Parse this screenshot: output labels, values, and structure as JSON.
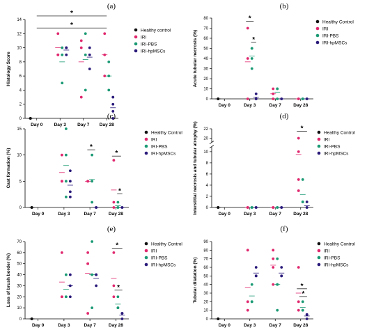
{
  "colors": {
    "Healthy control": "#111111",
    "IRI": "#e0286e",
    "IRI-PBS": "#1b9a74",
    "IRI-hpMSCs": "#2a1a7a"
  },
  "chart_data": [
    {
      "panel": "(a)",
      "type": "scatter",
      "ylabel": "Histology Score",
      "categories": [
        "Day 0",
        "Day 3",
        "Day 7",
        "Day 28"
      ],
      "ylim": [
        0,
        14
      ],
      "yticks": [
        0,
        2,
        4,
        6,
        8,
        10,
        12,
        14
      ],
      "legend": [
        "Healthy control",
        "IRI",
        "IRI-PBS",
        "IRI-hpMSCs"
      ],
      "legend_position": "right",
      "series": [
        {
          "name": "Healthy control",
          "points": [
            [
              0,
              0
            ],
            [
              0,
              0
            ],
            [
              0,
              0
            ]
          ]
        },
        {
          "name": "IRI",
          "points": [
            [
              1,
              9
            ],
            [
              1,
              9
            ],
            [
              1,
              12
            ],
            [
              2,
              10
            ],
            [
              2,
              11
            ],
            [
              2,
              3
            ],
            [
              3,
              9
            ],
            [
              3,
              12
            ],
            [
              3,
              6
            ]
          ]
        },
        {
          "name": "IRI-PBS",
          "points": [
            [
              1,
              5
            ],
            [
              1,
              9
            ],
            [
              1,
              10
            ],
            [
              2,
              4
            ],
            [
              2,
              9
            ],
            [
              2,
              12
            ],
            [
              3,
              4
            ],
            [
              3,
              6
            ],
            [
              3,
              8
            ]
          ]
        },
        {
          "name": "IRI-hpMSCs",
          "points": [
            [
              1,
              9
            ],
            [
              1,
              10
            ],
            [
              1,
              10
            ],
            [
              2,
              7
            ],
            [
              2,
              9
            ],
            [
              2,
              10
            ],
            [
              3,
              0
            ],
            [
              3,
              1
            ],
            [
              3,
              2
            ],
            [
              3,
              3
            ]
          ]
        }
      ],
      "significance": [
        {
          "from": 0,
          "to": 3,
          "level": 14.5,
          "label": "*"
        },
        {
          "from": 0,
          "to": 3,
          "level": 12.8,
          "label": "*"
        }
      ]
    },
    {
      "panel": "(b)",
      "type": "scatter",
      "ylabel": "Acute tubular necrosis (%)",
      "categories": [
        "Day 0",
        "Day 3",
        "Day 7",
        "Day 28"
      ],
      "ylim": [
        0,
        80
      ],
      "yticks": [
        0,
        10,
        20,
        30,
        40,
        50,
        60,
        70,
        80
      ],
      "legend": [
        "Healthy Control",
        "IRI",
        "IRI-PBS",
        "IRI-hpMSCs"
      ],
      "legend_position": "top-right",
      "series": [
        {
          "name": "Healthy Control",
          "points": [
            [
              0,
              0
            ],
            [
              0,
              0
            ],
            [
              0,
              0
            ]
          ]
        },
        {
          "name": "IRI",
          "points": [
            [
              1,
              40
            ],
            [
              1,
              70
            ],
            [
              1,
              0
            ],
            [
              2,
              10
            ],
            [
              2,
              5
            ],
            [
              2,
              0
            ],
            [
              3,
              0
            ],
            [
              3,
              0
            ]
          ]
        },
        {
          "name": "IRI-PBS",
          "points": [
            [
              1,
              30
            ],
            [
              1,
              40
            ],
            [
              1,
              50
            ],
            [
              1,
              50
            ],
            [
              2,
              10
            ],
            [
              2,
              10
            ],
            [
              2,
              0
            ],
            [
              3,
              0
            ],
            [
              3,
              0
            ]
          ]
        },
        {
          "name": "IRI-hpMSCs",
          "points": [
            [
              1,
              0
            ],
            [
              1,
              0
            ],
            [
              1,
              5
            ],
            [
              2,
              0
            ],
            [
              2,
              0
            ],
            [
              3,
              0
            ],
            [
              3,
              0
            ]
          ]
        }
      ],
      "significance": [
        {
          "from": 0.85,
          "to": 1.15,
          "level": 77,
          "label": "*"
        },
        {
          "from": 1.05,
          "to": 1.25,
          "level": 56,
          "label": "*"
        }
      ]
    },
    {
      "panel": "(c)",
      "type": "scatter",
      "ylabel": "Cast formation (%)",
      "categories": [
        "Day 0",
        "Day 3",
        "Day 7",
        "Day 28"
      ],
      "ylim": [
        0,
        15
      ],
      "yticks": [
        0,
        5,
        10,
        15
      ],
      "legend": [
        "Healthy Control",
        "IRI",
        "IRI-PBS",
        "IRI-hpMSCs"
      ],
      "legend_position": "top-right",
      "series": [
        {
          "name": "Healthy Control",
          "points": [
            [
              0,
              0
            ],
            [
              0,
              0
            ],
            [
              0,
              0
            ]
          ]
        },
        {
          "name": "IRI",
          "points": [
            [
              1,
              10
            ],
            [
              1,
              5
            ],
            [
              1,
              5
            ],
            [
              2,
              5
            ],
            [
              2,
              5
            ],
            [
              3,
              9
            ],
            [
              3,
              1
            ],
            [
              3,
              0
            ]
          ]
        },
        {
          "name": "IRI-PBS",
          "points": [
            [
              1,
              15
            ],
            [
              1,
              10
            ],
            [
              1,
              5
            ],
            [
              1,
              2
            ],
            [
              2,
              10
            ],
            [
              2,
              5
            ],
            [
              2,
              1
            ],
            [
              3,
              1
            ],
            [
              3,
              0
            ],
            [
              3,
              0
            ]
          ]
        },
        {
          "name": "IRI-hpMSCs",
          "points": [
            [
              1,
              7
            ],
            [
              1,
              5
            ],
            [
              1,
              3
            ],
            [
              1,
              2
            ],
            [
              2,
              0
            ],
            [
              2,
              0
            ],
            [
              3,
              0
            ],
            [
              3,
              0
            ]
          ]
        }
      ],
      "significance": [
        {
          "from": 1.9,
          "to": 2.2,
          "level": 11,
          "label": "*"
        },
        {
          "from": 2.85,
          "to": 3.2,
          "level": 9.8,
          "label": "*"
        },
        {
          "from": 3.05,
          "to": 3.25,
          "level": 2.6,
          "label": "*"
        }
      ]
    },
    {
      "panel": "(d)",
      "type": "scatter",
      "ylabel": "Interstitial necrosis and tubular atrophy (%)",
      "categories": [
        "Day 0",
        "Day 3",
        "Day 7",
        "Day 28"
      ],
      "ylim": [
        0,
        22
      ],
      "yticks": [
        0,
        2,
        4,
        6,
        8,
        10,
        20,
        22
      ],
      "axis_break": [
        11,
        19
      ],
      "legend": [
        "Healthy Control",
        "IRI",
        "IRI-PBS",
        "IRI-hpMSCs"
      ],
      "legend_position": "top-right",
      "series": [
        {
          "name": "Healthy Control",
          "points": [
            [
              0,
              0
            ],
            [
              0,
              0
            ],
            [
              0,
              0
            ]
          ]
        },
        {
          "name": "IRI",
          "points": [
            [
              1,
              0
            ],
            [
              1,
              0
            ],
            [
              2,
              0
            ],
            [
              2,
              0
            ],
            [
              3,
              20
            ],
            [
              3,
              10
            ],
            [
              3,
              5
            ],
            [
              3,
              3
            ]
          ]
        },
        {
          "name": "IRI-PBS",
          "points": [
            [
              1,
              0
            ],
            [
              1,
              0
            ],
            [
              2,
              0
            ],
            [
              2,
              0
            ],
            [
              3,
              5
            ],
            [
              3,
              1
            ],
            [
              3,
              1
            ]
          ]
        },
        {
          "name": "IRI-hpMSCs",
          "points": [
            [
              1,
              0
            ],
            [
              1,
              0
            ],
            [
              2,
              0
            ],
            [
              2,
              0
            ],
            [
              3,
              1
            ],
            [
              3,
              0
            ],
            [
              3,
              0
            ]
          ]
        }
      ],
      "significance": [
        {
          "from": 2.85,
          "to": 3.25,
          "level": 21.5,
          "label": "*"
        }
      ]
    },
    {
      "panel": "(e)",
      "type": "scatter",
      "ylabel": "Loss of brush border (%)",
      "categories": [
        "Day 0",
        "Day 3",
        "Day 7",
        "Day 28"
      ],
      "ylim": [
        0,
        70
      ],
      "yticks": [
        0,
        10,
        20,
        30,
        40,
        50,
        60,
        70
      ],
      "legend": [
        "Healthy Control",
        "IRI",
        "IRI-PBS",
        "IRI-hpMSCs"
      ],
      "legend_position": "top-right",
      "series": [
        {
          "name": "Healthy Control",
          "points": [
            [
              0,
              0
            ],
            [
              0,
              0
            ],
            [
              0,
              0
            ]
          ]
        },
        {
          "name": "IRI",
          "points": [
            [
              1,
              60
            ],
            [
              1,
              20
            ],
            [
              1,
              20
            ],
            [
              2,
              60
            ],
            [
              2,
              50
            ],
            [
              2,
              50
            ],
            [
              2,
              5
            ],
            [
              3,
              60
            ],
            [
              3,
              30
            ],
            [
              3,
              20
            ]
          ]
        },
        {
          "name": "IRI-PBS",
          "points": [
            [
              1,
              20
            ],
            [
              1,
              20
            ],
            [
              1,
              40
            ],
            [
              2,
              70
            ],
            [
              2,
              40
            ],
            [
              2,
              10
            ],
            [
              3,
              20
            ],
            [
              3,
              10
            ],
            [
              3,
              10
            ]
          ]
        },
        {
          "name": "IRI-hpMSCs",
          "points": [
            [
              1,
              40
            ],
            [
              1,
              30
            ],
            [
              1,
              20
            ],
            [
              2,
              40
            ],
            [
              2,
              40
            ],
            [
              2,
              30
            ],
            [
              3,
              5
            ],
            [
              3,
              5
            ],
            [
              3,
              0
            ]
          ]
        }
      ],
      "significance": [
        {
          "from": 2.85,
          "to": 3.25,
          "level": 64,
          "label": "*"
        },
        {
          "from": 2.95,
          "to": 3.25,
          "level": 26,
          "label": "*"
        }
      ]
    },
    {
      "panel": "(f)",
      "type": "scatter",
      "ylabel": "Tubular dilatation (%)",
      "categories": [
        "Day 0",
        "Day 3",
        "Day 7",
        "Day 28"
      ],
      "ylim": [
        0,
        90
      ],
      "yticks": [
        0,
        10,
        20,
        30,
        40,
        50,
        60,
        70,
        80,
        90
      ],
      "legend": [
        "Healthy Control",
        "IRI",
        "IRI-PBS",
        "IRI-hpMSCs"
      ],
      "legend_position": "top-right",
      "series": [
        {
          "name": "Healthy Control",
          "points": [
            [
              0,
              0
            ],
            [
              0,
              0
            ],
            [
              0,
              0
            ]
          ]
        },
        {
          "name": "IRI",
          "points": [
            [
              1,
              80
            ],
            [
              1,
              20
            ],
            [
              1,
              10
            ],
            [
              2,
              80
            ],
            [
              2,
              70
            ],
            [
              2,
              60
            ],
            [
              2,
              40
            ],
            [
              3,
              60
            ],
            [
              3,
              20
            ],
            [
              3,
              10
            ]
          ]
        },
        {
          "name": "IRI-PBS",
          "points": [
            [
              1,
              40
            ],
            [
              1,
              20
            ],
            [
              1,
              20
            ],
            [
              2,
              70
            ],
            [
              2,
              40
            ],
            [
              2,
              40
            ],
            [
              2,
              10
            ],
            [
              3,
              20
            ],
            [
              3,
              10
            ],
            [
              3,
              10
            ]
          ]
        },
        {
          "name": "IRI-hpMSCs",
          "points": [
            [
              1,
              60
            ],
            [
              1,
              50
            ],
            [
              1,
              50
            ],
            [
              2,
              60
            ],
            [
              2,
              50
            ],
            [
              2,
              50
            ],
            [
              3,
              5
            ],
            [
              3,
              5
            ],
            [
              3,
              0
            ]
          ]
        }
      ],
      "significance": [
        {
          "from": 2.85,
          "to": 3.25,
          "level": 35,
          "label": "*"
        },
        {
          "from": 2.95,
          "to": 3.25,
          "level": 26,
          "label": "*"
        }
      ]
    }
  ]
}
